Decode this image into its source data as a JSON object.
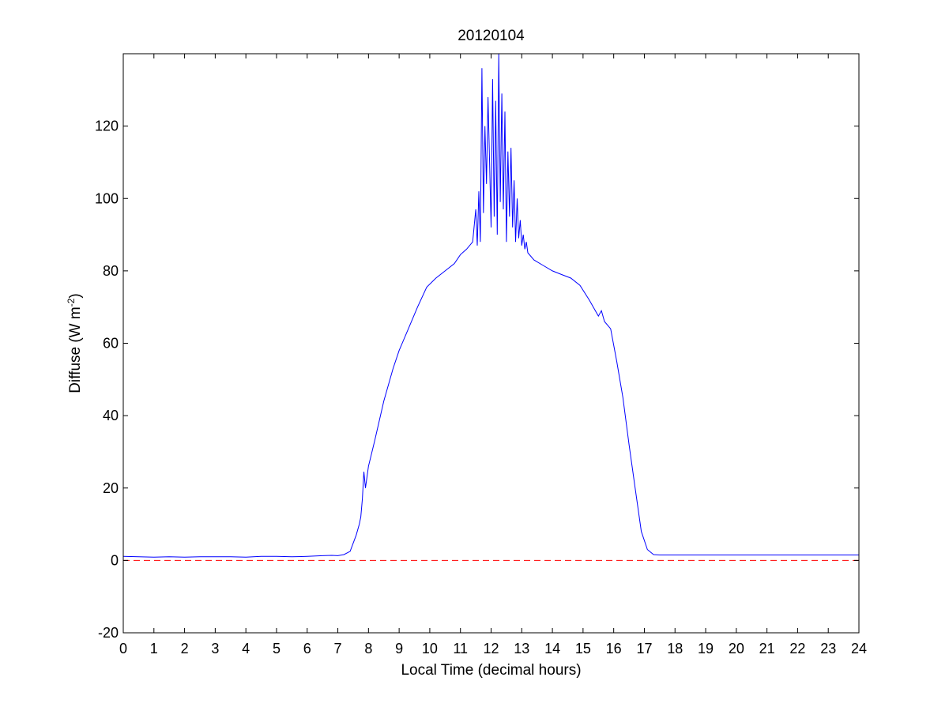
{
  "chart_data": {
    "type": "line",
    "title": "20120104",
    "xlabel": "Local Time (decimal hours)",
    "ylabel": "Diffuse (W m-2)",
    "ylabel_parts": {
      "main": "Diffuse (W m",
      "superscript": "-2",
      "close": ")"
    },
    "xlim": [
      0,
      24
    ],
    "ylim": [
      -20,
      140
    ],
    "xticks": [
      0,
      1,
      2,
      3,
      4,
      5,
      6,
      7,
      8,
      9,
      10,
      11,
      12,
      13,
      14,
      15,
      16,
      17,
      18,
      19,
      20,
      21,
      22,
      23,
      24
    ],
    "xtick_labels": [
      "0",
      "1",
      "2",
      "3",
      "4",
      "5",
      "6",
      "7",
      "8",
      "9",
      "10",
      "11",
      "12",
      "13",
      "14",
      "15",
      "16",
      "17",
      "18",
      "19",
      "20",
      "21",
      "22",
      "23",
      "24"
    ],
    "yticks": [
      -20,
      0,
      20,
      40,
      60,
      80,
      100,
      120
    ],
    "ytick_labels": [
      "-20",
      "0",
      "20",
      "40",
      "60",
      "80",
      "100",
      "120"
    ],
    "grid": false,
    "legend": "none",
    "series": [
      {
        "color": "#0000ff",
        "style": "solid",
        "x": [
          0,
          0.5,
          1,
          1.5,
          2,
          2.5,
          3,
          3.5,
          4,
          4.5,
          5,
          5.5,
          6,
          6.5,
          6.8,
          7.0,
          7.2,
          7.4,
          7.6,
          7.7,
          7.75,
          7.8,
          7.85,
          7.9,
          8.0,
          8.2,
          8.5,
          8.8,
          9.0,
          9.3,
          9.6,
          9.9,
          10.2,
          10.5,
          10.8,
          11.0,
          11.2,
          11.4,
          11.5,
          11.55,
          11.6,
          11.65,
          11.7,
          11.75,
          11.8,
          11.85,
          11.9,
          11.95,
          12.0,
          12.05,
          12.1,
          12.15,
          12.2,
          12.25,
          12.3,
          12.35,
          12.4,
          12.45,
          12.5,
          12.55,
          12.6,
          12.65,
          12.7,
          12.75,
          12.8,
          12.85,
          12.9,
          12.95,
          13.0,
          13.05,
          13.1,
          13.15,
          13.2,
          13.4,
          13.7,
          14.0,
          14.3,
          14.6,
          14.9,
          15.2,
          15.4,
          15.5,
          15.6,
          15.7,
          15.9,
          16.1,
          16.3,
          16.5,
          16.7,
          16.9,
          17.1,
          17.3,
          17.5,
          17.8,
          18.2,
          19,
          20,
          21,
          22,
          23,
          24
        ],
        "y": [
          1.1,
          1.0,
          0.9,
          1.0,
          0.9,
          1.0,
          1.0,
          1.0,
          0.9,
          1.1,
          1.1,
          1.0,
          1.1,
          1.3,
          1.4,
          1.3,
          1.6,
          2.5,
          7.0,
          10.0,
          12.0,
          17.0,
          24.5,
          20.0,
          26.0,
          33.0,
          44.0,
          53.0,
          58.0,
          64.0,
          70.0,
          75.5,
          78.0,
          80.0,
          82.0,
          84.5,
          86.0,
          88.0,
          97.0,
          87.0,
          102.0,
          88.0,
          136.0,
          96.0,
          120.0,
          104.0,
          128.0,
          110.0,
          92.0,
          133.0,
          95.0,
          127.0,
          90.0,
          140.0,
          99.0,
          129.0,
          97.0,
          124.0,
          88.0,
          113.0,
          95.0,
          114.0,
          92.0,
          105.0,
          88.0,
          100.0,
          89.0,
          94.0,
          87.0,
          90.0,
          86.0,
          88.0,
          85.0,
          83.0,
          81.5,
          80.0,
          79.0,
          78.0,
          76.0,
          72.0,
          69.0,
          67.5,
          69.0,
          66.0,
          64.0,
          55.0,
          45.0,
          32.0,
          20.0,
          8.0,
          3.0,
          1.6,
          1.5,
          1.5,
          1.5,
          1.5,
          1.5,
          1.5,
          1.5,
          1.5,
          1.5
        ]
      },
      {
        "color": "#ff0000",
        "style": "dashed",
        "x": [
          0,
          24
        ],
        "y": [
          0,
          0
        ]
      }
    ]
  }
}
